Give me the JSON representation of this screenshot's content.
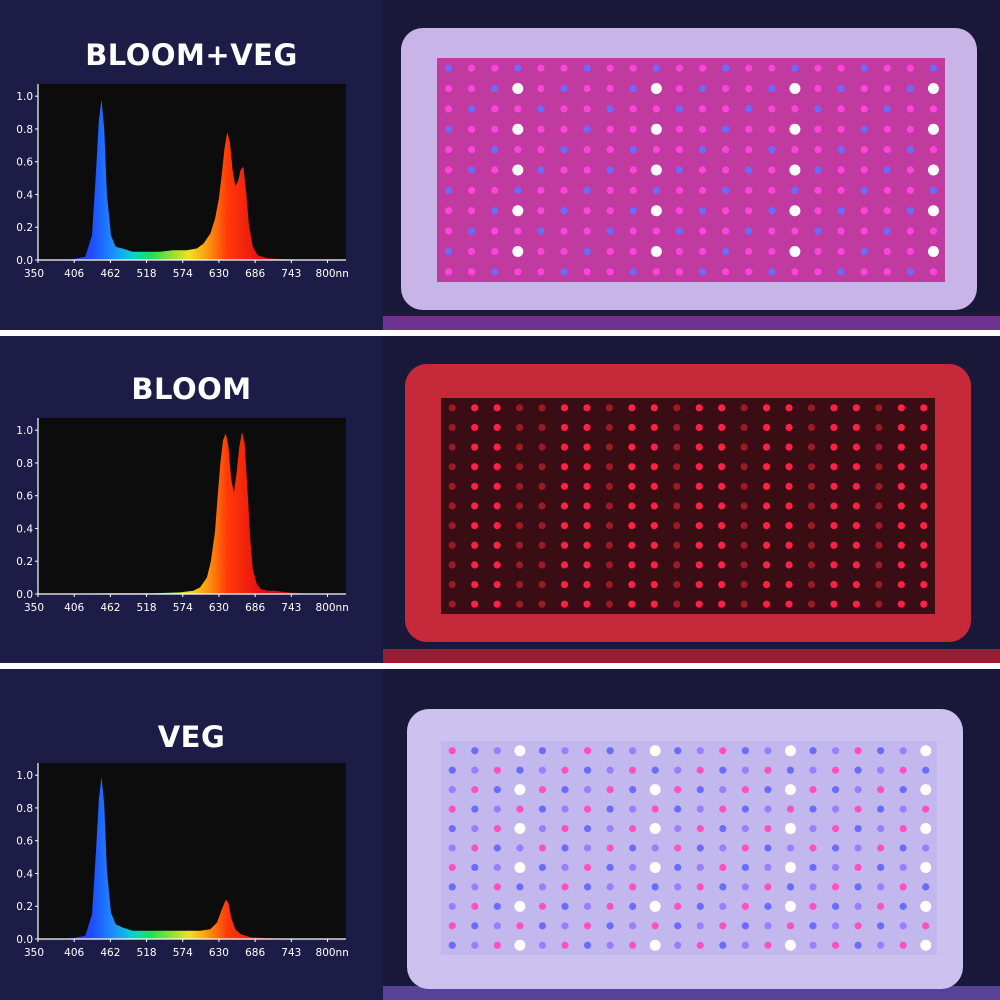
{
  "x_tick_labels": [
    "350",
    "406",
    "462",
    "518",
    "574",
    "630",
    "686",
    "743",
    "800nm"
  ],
  "y_tick_labels": [
    "0.0",
    "0.2",
    "0.4",
    "0.6",
    "0.8",
    "1.0"
  ],
  "chart_data": [
    {
      "type": "area",
      "title": "BLOOM+VEG",
      "xlabel": "",
      "ylabel": "",
      "xlim": [
        350,
        800
      ],
      "ylim": [
        0,
        1.05
      ],
      "x": [
        350,
        380,
        400,
        420,
        430,
        436,
        440,
        444,
        448,
        452,
        458,
        465,
        475,
        490,
        510,
        530,
        550,
        570,
        585,
        595,
        605,
        612,
        618,
        622,
        626,
        630,
        634,
        638,
        642,
        646,
        650,
        654,
        658,
        662,
        668,
        675,
        690,
        720,
        760,
        800
      ],
      "y": [
        0,
        0,
        0.005,
        0.02,
        0.15,
        0.55,
        0.85,
        0.98,
        0.8,
        0.4,
        0.15,
        0.08,
        0.07,
        0.05,
        0.05,
        0.05,
        0.06,
        0.06,
        0.07,
        0.1,
        0.16,
        0.25,
        0.38,
        0.52,
        0.68,
        0.78,
        0.72,
        0.55,
        0.45,
        0.48,
        0.55,
        0.57,
        0.42,
        0.22,
        0.08,
        0.03,
        0.01,
        0.005,
        0,
        0
      ],
      "grid": false
    },
    {
      "type": "area",
      "title": "BLOOM",
      "xlabel": "",
      "ylabel": "",
      "xlim": [
        350,
        800
      ],
      "ylim": [
        0,
        1.05
      ],
      "x": [
        350,
        400,
        440,
        480,
        520,
        560,
        580,
        590,
        600,
        606,
        612,
        616,
        620,
        624,
        628,
        632,
        636,
        640,
        644,
        648,
        652,
        656,
        660,
        664,
        668,
        674,
        680,
        690,
        700,
        720,
        760,
        800
      ],
      "y": [
        0,
        0,
        0.005,
        0.005,
        0.005,
        0.01,
        0.02,
        0.04,
        0.1,
        0.2,
        0.38,
        0.6,
        0.8,
        0.94,
        0.98,
        0.9,
        0.7,
        0.62,
        0.74,
        0.9,
        0.99,
        0.92,
        0.65,
        0.35,
        0.15,
        0.06,
        0.03,
        0.02,
        0.02,
        0.01,
        0,
        0
      ],
      "grid": false
    },
    {
      "type": "area",
      "title": "VEG",
      "xlabel": "",
      "ylabel": "",
      "xlim": [
        350,
        800
      ],
      "ylim": [
        0,
        1.05
      ],
      "x": [
        350,
        380,
        400,
        420,
        430,
        436,
        440,
        444,
        448,
        452,
        458,
        465,
        475,
        490,
        510,
        530,
        550,
        570,
        590,
        605,
        615,
        622,
        628,
        632,
        636,
        642,
        650,
        665,
        690,
        720,
        760,
        800
      ],
      "y": [
        0,
        0,
        0.005,
        0.02,
        0.15,
        0.55,
        0.85,
        0.99,
        0.82,
        0.42,
        0.16,
        0.09,
        0.07,
        0.05,
        0.05,
        0.05,
        0.05,
        0.05,
        0.05,
        0.06,
        0.1,
        0.18,
        0.24,
        0.22,
        0.13,
        0.06,
        0.03,
        0.01,
        0.005,
        0,
        0,
        0
      ],
      "grid": false
    }
  ],
  "colors": {
    "background": "#1d1c47",
    "divider": "#ffffff",
    "plot_bg": "#0c0c0c",
    "axis": "#ffffff",
    "led_red": "#ff2244",
    "led_magenta": "#ff44dd",
    "led_blue": "#6a6cff",
    "led_white": "#ffffff"
  },
  "panels": [
    {
      "name": "bloom-veg-led-panel",
      "mode": "mixed"
    },
    {
      "name": "bloom-led-panel",
      "mode": "red"
    },
    {
      "name": "veg-led-panel",
      "mode": "blue"
    }
  ]
}
